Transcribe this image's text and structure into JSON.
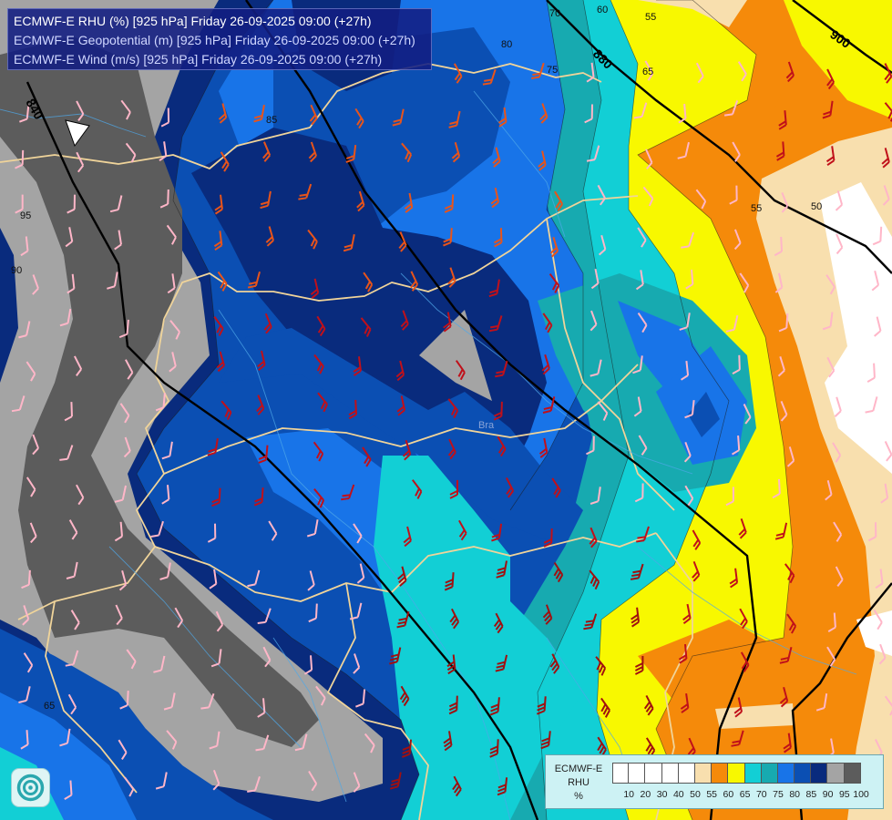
{
  "title": {
    "main": "ECMWF-E RHU (%) [925 hPa] Friday 26-09-2025 09:00 (+27h)",
    "geopotential": "ECMWF-E Geopotential (m) [925 hPa] Friday 26-09-2025 09:00 (+27h)",
    "wind": "ECMWF-E Wind (m/s) [925 hPa] Friday 26-09-2025 09:00 (+27h)"
  },
  "legend": {
    "model": "ECMWF-E",
    "variable": "RHU",
    "unit": "%",
    "ticks": [
      "10",
      "20",
      "30",
      "40",
      "50",
      "55",
      "60",
      "65",
      "70",
      "75",
      "80",
      "85",
      "90",
      "95",
      "100"
    ],
    "colors": [
      "#ffffff",
      "#ffffff",
      "#ffffff",
      "#ffffff",
      "#ffffff",
      "#f8dfae",
      "#f58a0a",
      "#f8f800",
      "#12cfd5",
      "#17aab0",
      "#1874e8",
      "#0b4fb3",
      "#092b7d",
      "#a4a4a4",
      "#5c5c5c"
    ]
  },
  "map_labels": {
    "geopotential_contours": [
      "840",
      "880",
      "900"
    ],
    "humidity_contours": [
      "95",
      "90",
      "85",
      "80",
      "75",
      "70",
      "65",
      "60",
      "55",
      "50",
      "65",
      "55"
    ],
    "places": [
      "Bra"
    ]
  },
  "colors": {
    "rhu_95_100": "#5c5c5c",
    "rhu_90_95": "#a4a4a4",
    "rhu_85_90": "#092b7d",
    "rhu_80_85": "#0b4fb3",
    "rhu_75_80": "#1874e8",
    "rhu_70_75": "#17aab0",
    "rhu_65_70": "#12cfd5",
    "rhu_60_65": "#f8f800",
    "rhu_55_60": "#f58a0a",
    "rhu_50_55": "#f8dfae",
    "rhu_below_50": "#ffffff",
    "border": "#f0d49a",
    "isohypse": "#000000"
  },
  "icons": [
    "wind-barb-icon",
    "calm-wind-icon",
    "ecmwf-logo-icon"
  ]
}
